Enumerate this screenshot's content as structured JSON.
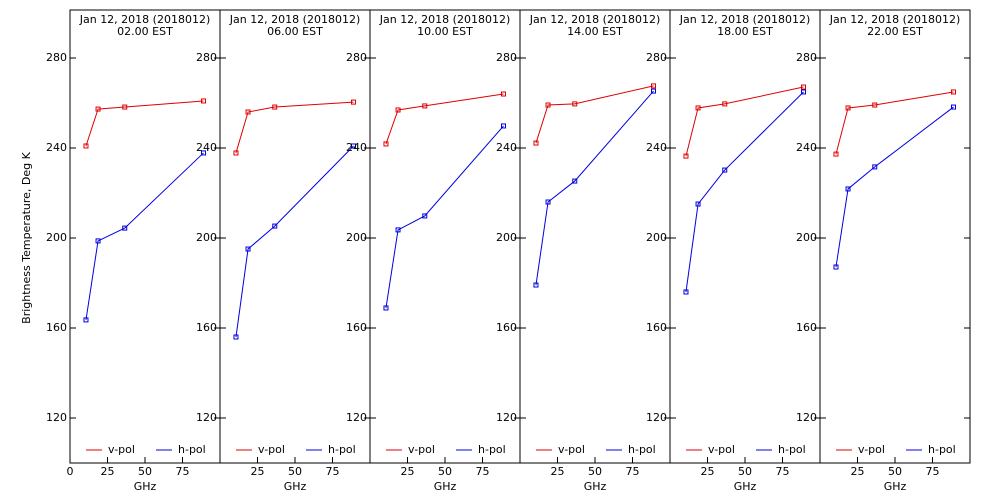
{
  "chart_data": [
    {
      "type": "line",
      "title": "Jan 12, 2018 (2018012)",
      "subtitle": "02.00 EST",
      "y_label": "Brightness Temperature, Deg K",
      "x_label": "GHz",
      "x": [
        10.65,
        18.7,
        36.5,
        89
      ],
      "xlim": [
        0,
        100
      ],
      "xticks": [
        0,
        25,
        50,
        75
      ],
      "ylim": [
        100,
        300
      ],
      "yticks": [
        120,
        160,
        200,
        240,
        280
      ],
      "series": [
        {
          "name": "v-pol",
          "color": "#e00000",
          "values": [
            240.9,
            257.3,
            258.2,
            260.9
          ]
        },
        {
          "name": "h-pol",
          "color": "#0000e0",
          "values": [
            163.6,
            198.7,
            204.4,
            237.8
          ]
        }
      ]
    },
    {
      "type": "line",
      "title": "Jan 12, 2018 (2018012)",
      "subtitle": "06.00 EST",
      "x_label": "GHz",
      "x": [
        10.65,
        18.7,
        36.5,
        89
      ],
      "xlim": [
        0,
        100
      ],
      "xticks": [
        25,
        50,
        75
      ],
      "ylim": [
        100,
        300
      ],
      "yticks": [
        120,
        160,
        200,
        240,
        280
      ],
      "series": [
        {
          "name": "v-pol",
          "color": "#e00000",
          "values": [
            237.8,
            256,
            258.2,
            260.4
          ]
        },
        {
          "name": "h-pol",
          "color": "#0000e0",
          "values": [
            156,
            195.1,
            205.3,
            240.9
          ]
        }
      ]
    },
    {
      "type": "line",
      "title": "Jan 12, 2018 (2018012)",
      "subtitle": "10.00 EST",
      "x_label": "GHz",
      "x": [
        10.65,
        18.7,
        36.5,
        89
      ],
      "xlim": [
        0,
        100
      ],
      "xticks": [
        25,
        50,
        75
      ],
      "ylim": [
        100,
        300
      ],
      "yticks": [
        120,
        160,
        200,
        240,
        280
      ],
      "series": [
        {
          "name": "v-pol",
          "color": "#e00000",
          "values": [
            241.8,
            256.9,
            258.7,
            264
          ]
        },
        {
          "name": "h-pol",
          "color": "#0000e0",
          "values": [
            168.9,
            203.6,
            209.8,
            249.8
          ]
        }
      ]
    },
    {
      "type": "line",
      "title": "Jan 12, 2018 (2018012)",
      "subtitle": "14.00 EST",
      "x_label": "GHz",
      "x": [
        10.65,
        18.7,
        36.5,
        89
      ],
      "xlim": [
        0,
        100
      ],
      "xticks": [
        25,
        50,
        75
      ],
      "ylim": [
        100,
        300
      ],
      "yticks": [
        120,
        160,
        200,
        240,
        280
      ],
      "series": [
        {
          "name": "v-pol",
          "color": "#e00000",
          "values": [
            242.2,
            259.1,
            259.6,
            267.6
          ]
        },
        {
          "name": "h-pol",
          "color": "#0000e0",
          "values": [
            179.1,
            216,
            225.3,
            265.3
          ]
        }
      ]
    },
    {
      "type": "line",
      "title": "Jan 12, 2018 (2018012)",
      "subtitle": "18.00 EST",
      "x_label": "GHz",
      "x": [
        10.65,
        18.7,
        36.5,
        89
      ],
      "xlim": [
        0,
        100
      ],
      "xticks": [
        25,
        50,
        75
      ],
      "ylim": [
        100,
        300
      ],
      "yticks": [
        120,
        160,
        200,
        240,
        280
      ],
      "series": [
        {
          "name": "v-pol",
          "color": "#e00000",
          "values": [
            236.4,
            257.8,
            259.6,
            267.1
          ]
        },
        {
          "name": "h-pol",
          "color": "#0000e0",
          "values": [
            176,
            215.1,
            230.2,
            264.9
          ]
        }
      ]
    },
    {
      "type": "line",
      "title": "Jan 12, 2018 (2018012)",
      "subtitle": "22.00 EST",
      "x_label": "GHz",
      "x": [
        10.65,
        18.7,
        36.5,
        89
      ],
      "xlim": [
        0,
        100
      ],
      "xticks": [
        25,
        50,
        75
      ],
      "ylim": [
        100,
        300
      ],
      "yticks": [
        120,
        160,
        200,
        240,
        280
      ],
      "series": [
        {
          "name": "v-pol",
          "color": "#e00000",
          "values": [
            237.3,
            257.8,
            259.1,
            264.9
          ]
        },
        {
          "name": "h-pol",
          "color": "#0000e0",
          "values": [
            187.1,
            221.8,
            231.6,
            258.2
          ]
        }
      ]
    }
  ]
}
